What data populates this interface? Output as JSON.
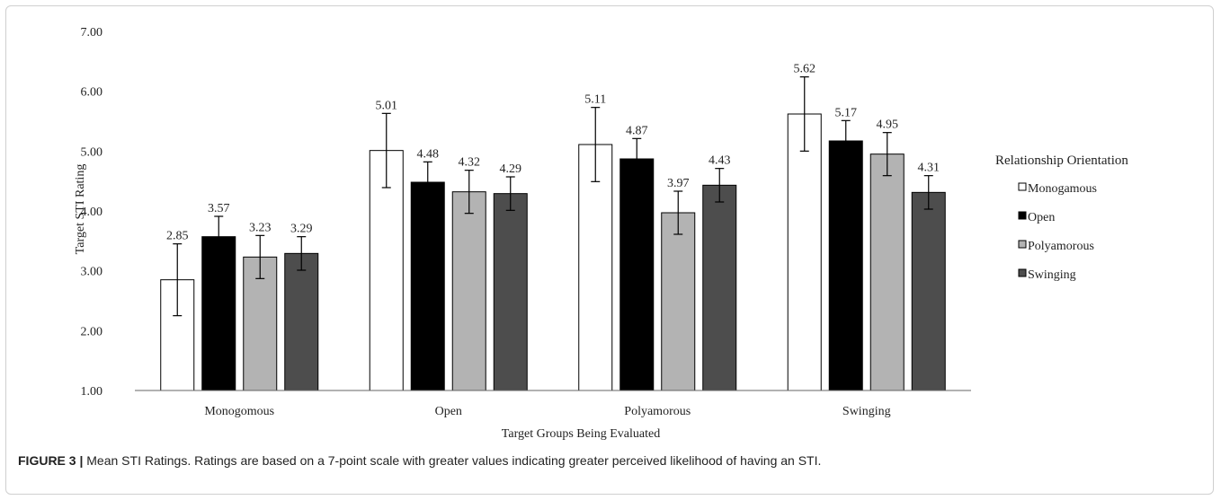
{
  "chart_data": {
    "type": "bar",
    "title": "",
    "xlabel": "Target Groups Being Evaluated",
    "ylabel": "Target STI Rating",
    "ylim": [
      1.0,
      7.0
    ],
    "yticks": [
      "1.00",
      "2.00",
      "3.00",
      "4.00",
      "5.00",
      "6.00",
      "7.00"
    ],
    "categories": [
      "Monogomous",
      "Open",
      "Polyamorous",
      "Swinging"
    ],
    "legend_title": "Relationship Orientation",
    "legend_position": "right",
    "error_bars": true,
    "series": [
      {
        "name": "Monogamous",
        "color": "#ffffff",
        "values": [
          2.85,
          5.01,
          5.11,
          5.62
        ],
        "labels": [
          "2.85",
          "5.01",
          "5.11",
          "5.62"
        ],
        "err": [
          0.6,
          0.62,
          0.62,
          0.62
        ]
      },
      {
        "name": "Open",
        "color": "#000000",
        "values": [
          3.57,
          4.48,
          4.87,
          5.17
        ],
        "labels": [
          "3.57",
          "4.48",
          "4.87",
          "5.17"
        ],
        "err": [
          0.34,
          0.34,
          0.34,
          0.34
        ]
      },
      {
        "name": "Polyamorous",
        "color": "#b3b3b3",
        "values": [
          3.23,
          4.32,
          3.97,
          4.95
        ],
        "labels": [
          "3.23",
          "4.32",
          "3.97",
          "4.95"
        ],
        "err": [
          0.36,
          0.36,
          0.36,
          0.36
        ]
      },
      {
        "name": "Swinging",
        "color": "#4d4d4d",
        "values": [
          3.29,
          4.29,
          4.43,
          4.31
        ],
        "labels": [
          "3.29",
          "4.29",
          "4.43",
          "4.31"
        ],
        "err": [
          0.28,
          0.28,
          0.28,
          0.28
        ]
      }
    ]
  },
  "caption": {
    "label": "FIGURE 3 |",
    "text": " Mean STI Ratings. Ratings are based on a 7-point scale with greater values indicating greater perceived likelihood of having an STI."
  }
}
